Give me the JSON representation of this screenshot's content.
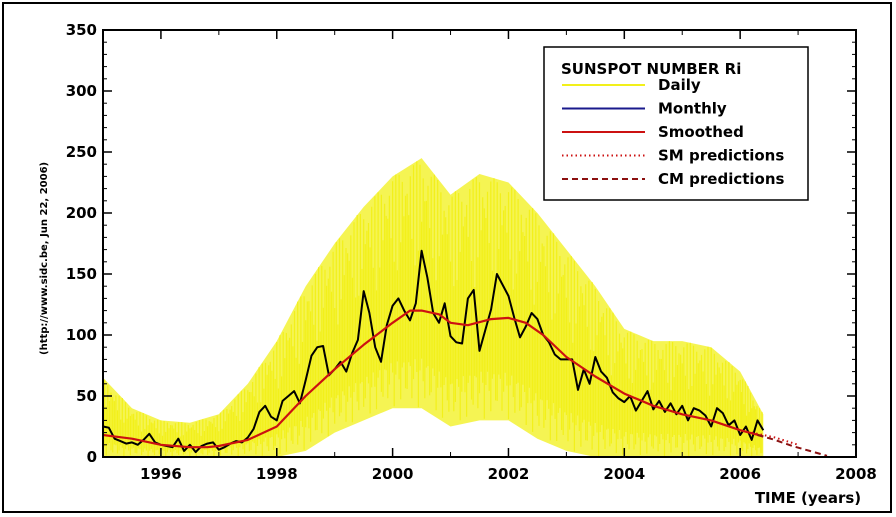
{
  "chart_data": {
    "type": "line",
    "title": "",
    "xlabel": "TIME (years)",
    "ylabel": "",
    "side_note": "(http://www.sidc.be, Jun 22, 2006)",
    "xlim": [
      1995.0,
      2008.0
    ],
    "ylim": [
      0,
      350
    ],
    "x_ticks": [
      1996,
      1998,
      2000,
      2002,
      2004,
      2006,
      2008
    ],
    "y_ticks": [
      0,
      50,
      100,
      150,
      200,
      250,
      300,
      350
    ],
    "grid": false,
    "legend": {
      "title": "SUNSPOT NUMBER Ri",
      "placement": "top-right",
      "entries": [
        "Daily",
        "Monthly",
        "Smoothed",
        "SM predictions",
        "CM predictions"
      ]
    },
    "colors": {
      "daily": "#f2f01a",
      "monthly": "#000000",
      "monthly_legend": "#1a1a8c",
      "smoothed": "#cc1111",
      "sm_predictions": "#cc1111",
      "cm_predictions": "#8b1010"
    },
    "series": [
      {
        "name": "Daily",
        "style": "yellow-band",
        "x": [
          1995.0,
          1995.5,
          1996.0,
          1996.5,
          1997.0,
          1997.5,
          1998.0,
          1998.5,
          1999.0,
          1999.5,
          2000.0,
          2000.5,
          2001.0,
          2001.5,
          2002.0,
          2002.5,
          2003.0,
          2003.5,
          2004.0,
          2004.5,
          2005.0,
          2005.5,
          2006.0,
          2006.4
        ],
        "upper": [
          65,
          40,
          30,
          28,
          35,
          60,
          95,
          140,
          175,
          205,
          230,
          245,
          215,
          232,
          225,
          200,
          170,
          140,
          105,
          95,
          95,
          90,
          70,
          35
        ],
        "lower": [
          0,
          0,
          0,
          0,
          0,
          0,
          0,
          5,
          20,
          30,
          40,
          40,
          25,
          30,
          30,
          15,
          5,
          0,
          0,
          0,
          0,
          0,
          0,
          0
        ]
      },
      {
        "name": "Monthly",
        "x": [
          1995.0,
          1995.1,
          1995.2,
          1995.3,
          1995.4,
          1995.5,
          1995.6,
          1995.7,
          1995.8,
          1995.9,
          1996.0,
          1996.1,
          1996.2,
          1996.3,
          1996.4,
          1996.5,
          1996.6,
          1996.7,
          1996.8,
          1996.9,
          1997.0,
          1997.1,
          1997.2,
          1997.3,
          1997.4,
          1997.5,
          1997.6,
          1997.7,
          1997.8,
          1997.9,
          1998.0,
          1998.1,
          1998.2,
          1998.3,
          1998.4,
          1998.5,
          1998.6,
          1998.7,
          1998.8,
          1998.9,
          1999.0,
          1999.1,
          1999.2,
          1999.3,
          1999.4,
          1999.5,
          1999.6,
          1999.7,
          1999.8,
          1999.9,
          2000.0,
          2000.1,
          2000.2,
          2000.3,
          2000.4,
          2000.5,
          2000.6,
          2000.7,
          2000.8,
          2000.9,
          2001.0,
          2001.1,
          2001.2,
          2001.3,
          2001.4,
          2001.5,
          2001.6,
          2001.7,
          2001.8,
          2001.9,
          2002.0,
          2002.1,
          2002.2,
          2002.3,
          2002.4,
          2002.5,
          2002.6,
          2002.7,
          2002.8,
          2002.9,
          2003.0,
          2003.1,
          2003.2,
          2003.3,
          2003.4,
          2003.5,
          2003.6,
          2003.7,
          2003.8,
          2003.9,
          2004.0,
          2004.1,
          2004.2,
          2004.3,
          2004.4,
          2004.5,
          2004.6,
          2004.7,
          2004.8,
          2004.9,
          2005.0,
          2005.1,
          2005.2,
          2005.3,
          2005.4,
          2005.5,
          2005.6,
          2005.7,
          2005.8,
          2005.9,
          2006.0,
          2006.1,
          2006.2,
          2006.3,
          2006.4
        ],
        "y": [
          25,
          24,
          15,
          13,
          11,
          12,
          10,
          14,
          19,
          12,
          10,
          9,
          8,
          15,
          5,
          10,
          4,
          9,
          11,
          12,
          6,
          8,
          11,
          13,
          12,
          16,
          23,
          37,
          42,
          33,
          30,
          46,
          50,
          54,
          44,
          63,
          83,
          90,
          91,
          67,
          72,
          78,
          70,
          85,
          96,
          136,
          118,
          90,
          78,
          108,
          124,
          130,
          120,
          112,
          126,
          169,
          147,
          118,
          110,
          126,
          99,
          94,
          93,
          130,
          137,
          87,
          104,
          121,
          150,
          141,
          132,
          114,
          98,
          107,
          118,
          113,
          100,
          94,
          84,
          80,
          80,
          80,
          55,
          72,
          60,
          82,
          70,
          65,
          53,
          48,
          45,
          50,
          38,
          46,
          54,
          39,
          46,
          37,
          44,
          35,
          42,
          30,
          40,
          38,
          34,
          25,
          40,
          36,
          26,
          30,
          18,
          25,
          14,
          30,
          22
        ]
      },
      {
        "name": "Smoothed",
        "x": [
          1995.0,
          1995.5,
          1996.0,
          1996.5,
          1996.8,
          1997.0,
          1997.5,
          1998.0,
          1998.5,
          1999.0,
          1999.5,
          2000.0,
          2000.3,
          2000.5,
          2000.8,
          2001.0,
          2001.3,
          2001.7,
          2002.0,
          2002.3,
          2002.6,
          2003.0,
          2003.5,
          2004.0,
          2004.5,
          2005.0,
          2005.5,
          2006.0,
          2006.4
        ],
        "y": [
          18,
          15,
          10,
          8,
          8,
          9,
          14,
          25,
          50,
          72,
          92,
          110,
          120,
          120,
          117,
          110,
          108,
          113,
          114,
          110,
          100,
          82,
          66,
          52,
          42,
          35,
          30,
          22,
          17
        ]
      },
      {
        "name": "SM predictions",
        "x": [
          2006.2,
          2006.4,
          2006.6,
          2006.8,
          2007.0
        ],
        "y": [
          20,
          18,
          16,
          13,
          10
        ]
      },
      {
        "name": "CM predictions",
        "x": [
          2006.3,
          2006.6,
          2006.9,
          2007.2,
          2007.5
        ],
        "y": [
          18,
          14,
          9,
          5,
          1
        ]
      }
    ]
  }
}
